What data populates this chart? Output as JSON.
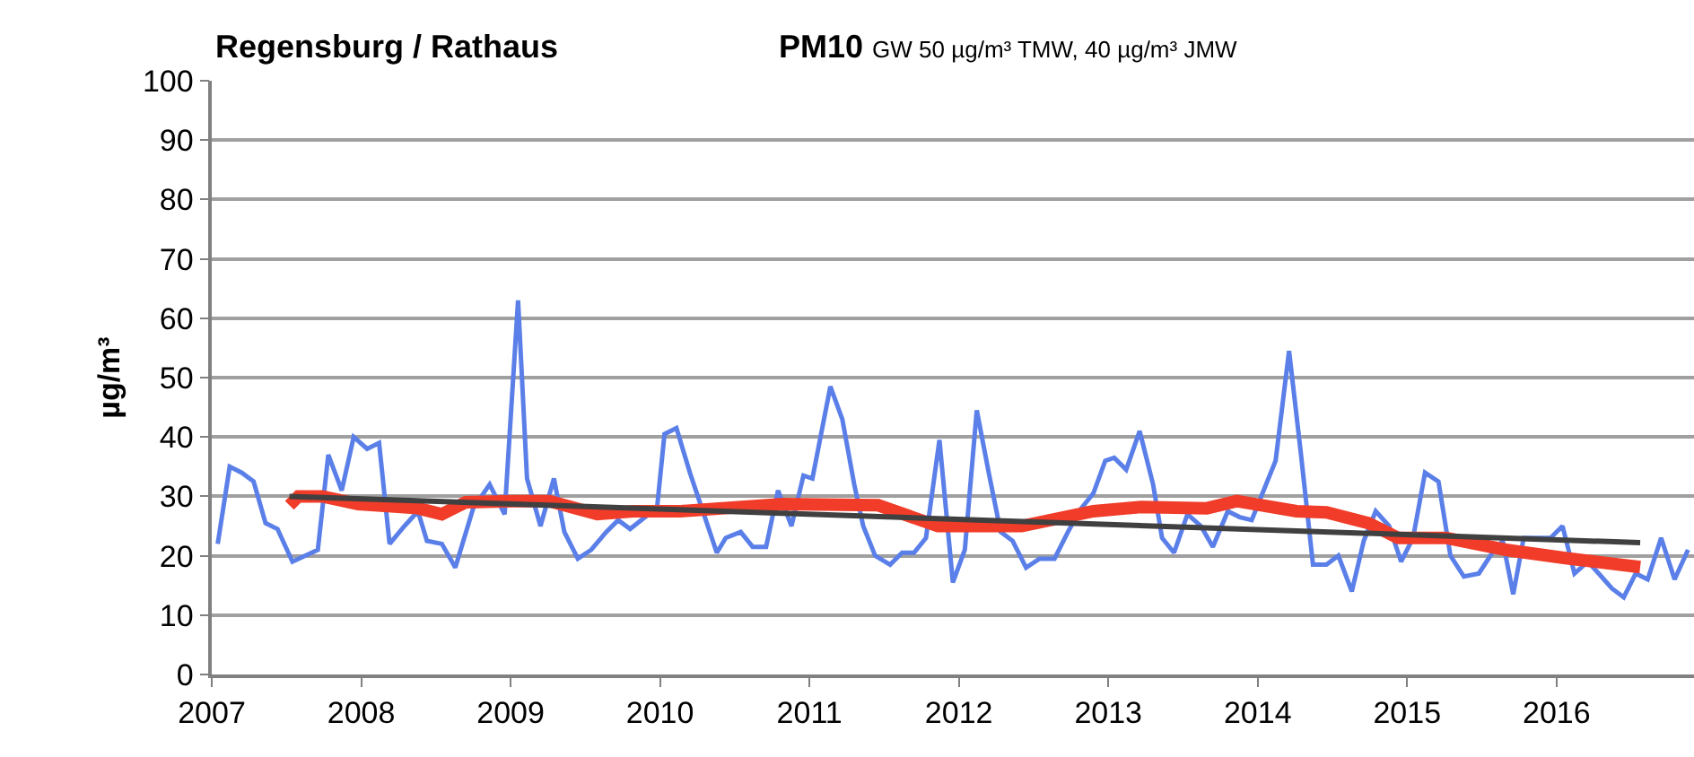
{
  "chart_data": {
    "type": "line",
    "title": "Regensburg / Rathaus",
    "subtitle": "PM10 GW 50 µg/m³ TMW, 40 µg/m³ JMW",
    "ylabel": "µg/m³",
    "xlim": [
      2007,
      2016.92
    ],
    "xticks": [
      2007,
      2008,
      2009,
      2010,
      2011,
      2012,
      2013,
      2014,
      2015,
      2016
    ],
    "ylim": [
      0,
      100
    ],
    "yticks": [
      0,
      10,
      20,
      30,
      40,
      50,
      60,
      70,
      80,
      90,
      100
    ],
    "grid": "y",
    "legend": false,
    "marker": "none",
    "line_style": "solid",
    "series": [
      {
        "color": "#5b7fe8",
        "x": [
          2007.04,
          2007.12,
          2007.2,
          2007.28,
          2007.36,
          2007.44,
          2007.54,
          2007.71,
          2007.78,
          2007.87,
          2007.95,
          2008.04,
          2008.12,
          2008.19,
          2008.29,
          2008.38,
          2008.44,
          2008.54,
          2008.63,
          2008.75,
          2008.86,
          2008.96,
          2009.05,
          2009.11,
          2009.2,
          2009.29,
          2009.36,
          2009.45,
          2009.54,
          2009.64,
          2009.72,
          2009.8,
          2009.9,
          2009.98,
          2010.03,
          2010.11,
          2010.2,
          2010.28,
          2010.38,
          2010.44,
          2010.54,
          2010.62,
          2010.71,
          2010.79,
          2010.88,
          2010.96,
          2011.02,
          2011.14,
          2011.22,
          2011.3,
          2011.36,
          2011.44,
          2011.54,
          2011.62,
          2011.7,
          2011.78,
          2011.87,
          2011.96,
          2012.04,
          2012.12,
          2012.2,
          2012.28,
          2012.36,
          2012.45,
          2012.54,
          2012.64,
          2012.73,
          2012.82,
          2012.9,
          2012.98,
          2013.04,
          2013.12,
          2013.21,
          2013.3,
          2013.36,
          2013.44,
          2013.53,
          2013.62,
          2013.7,
          2013.8,
          2013.88,
          2013.96,
          2014.04,
          2014.12,
          2014.21,
          2014.29,
          2014.37,
          2014.46,
          2014.54,
          2014.63,
          2014.71,
          2014.79,
          2014.88,
          2014.96,
          2015.04,
          2015.12,
          2015.21,
          2015.29,
          2015.38,
          2015.48,
          2015.57,
          2015.64,
          2015.71,
          2015.78,
          2015.88,
          2015.96,
          2016.04,
          2016.12,
          2016.21,
          2016.3,
          2016.37,
          2016.45,
          2016.53,
          2016.61,
          2016.7,
          2016.79,
          2016.88
        ],
        "values": [
          22,
          35,
          34,
          32.5,
          25.5,
          24.5,
          19,
          21,
          37,
          31,
          40,
          38,
          39,
          22,
          25,
          27.5,
          22.5,
          22,
          18,
          28,
          32,
          27,
          63,
          33,
          25,
          33,
          24,
          19.5,
          21,
          24,
          26,
          24.5,
          26.5,
          28,
          40.5,
          41.5,
          34,
          28,
          20.5,
          23,
          24,
          21.5,
          21.5,
          31,
          25,
          33.5,
          33,
          48.5,
          43,
          32,
          25,
          20,
          18.5,
          20.5,
          20.5,
          23,
          39.5,
          15.5,
          21,
          44.5,
          34,
          24,
          22.5,
          18,
          19.5,
          19.5,
          24,
          28,
          30.5,
          36,
          36.5,
          34.5,
          41,
          32,
          23,
          20.5,
          27,
          25,
          21.5,
          27.5,
          26.5,
          26,
          31,
          36,
          54.5,
          37,
          18.5,
          18.5,
          20,
          14,
          22.5,
          27.5,
          25,
          19,
          23,
          34,
          32.5,
          20,
          16.5,
          17,
          20.5,
          22.5,
          13.5,
          23,
          23,
          23,
          25,
          17,
          19,
          16.5,
          14.5,
          13,
          17,
          16,
          23,
          16,
          21
        ]
      },
      {
        "color": "#f03c28",
        "x": [
          2007.52,
          2007.58,
          2007.74,
          2007.98,
          2008.38,
          2008.54,
          2008.7,
          2009.02,
          2009.26,
          2009.58,
          2009.82,
          2010.14,
          2010.82,
          2011.46,
          2011.86,
          2012.42,
          2012.9,
          2013.22,
          2013.66,
          2013.86,
          2014.26,
          2014.46,
          2014.74,
          2014.94,
          2015.26,
          2015.66,
          2016.06,
          2016.56
        ],
        "values": [
          28.5,
          30,
          30,
          28.7,
          28,
          27,
          29,
          29.2,
          29.2,
          27,
          27.5,
          27.5,
          28.7,
          28.5,
          25,
          25,
          27.5,
          28.2,
          28,
          29.2,
          27.5,
          27.3,
          25.5,
          23,
          23,
          21,
          19.6,
          18.1
        ]
      },
      {
        "color": "#404040",
        "x": [
          2007.52,
          2016.56
        ],
        "values": [
          30,
          22.2
        ]
      }
    ]
  }
}
